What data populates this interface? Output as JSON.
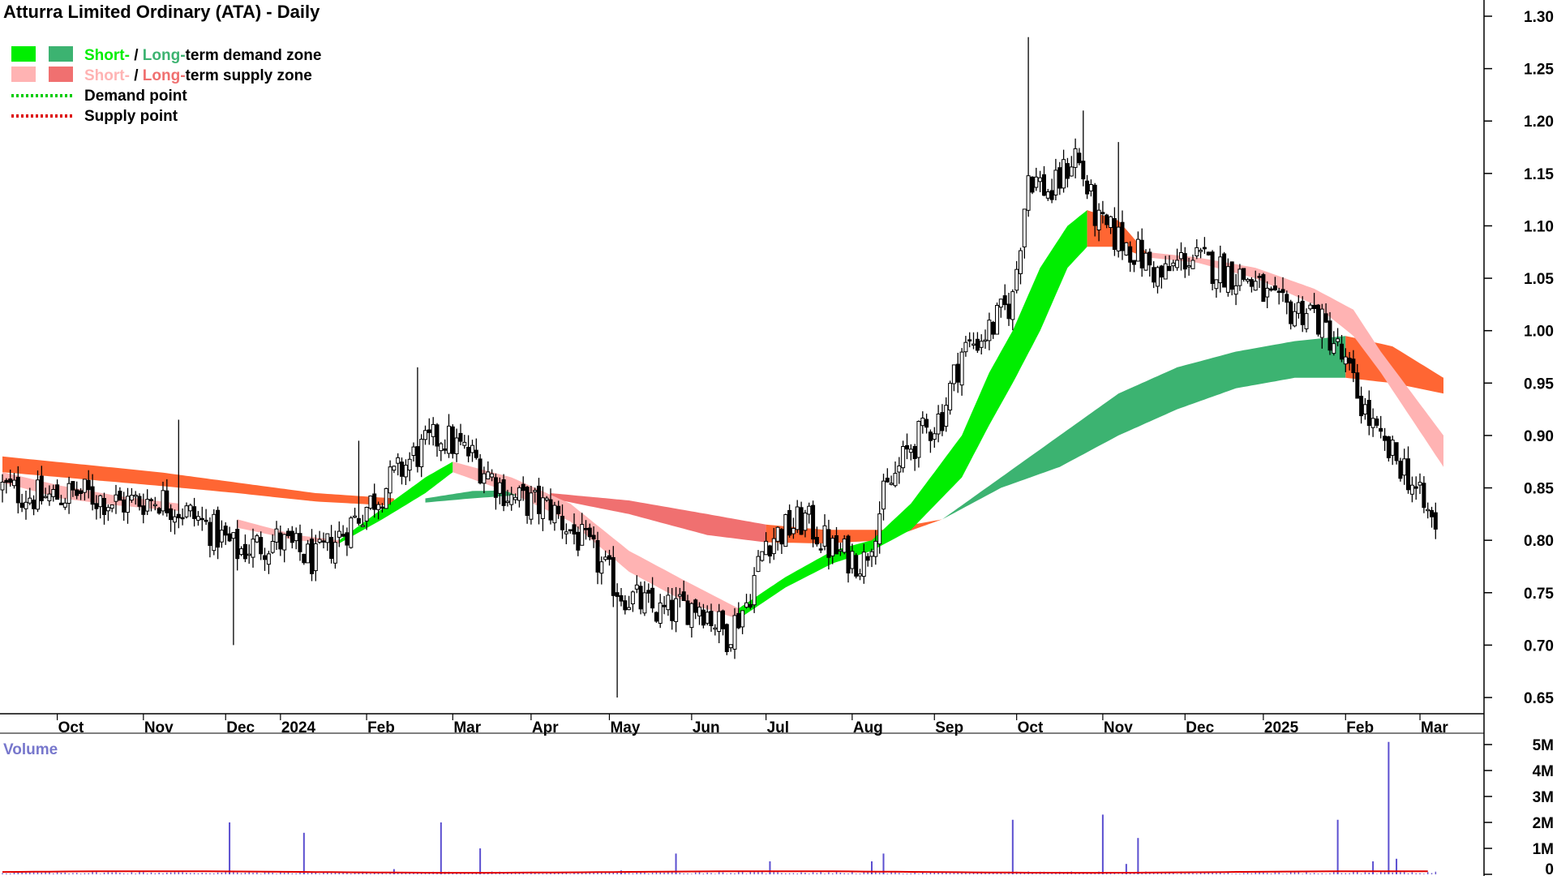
{
  "chart_data": {
    "type": "candlestick",
    "title": "Atturra Limited Ordinary (ATA) - Daily",
    "legend": {
      "placement": "top-left",
      "items": [
        {
          "short": "Short-",
          "sep": " / ",
          "long": "Long-",
          "rest": "term demand zone",
          "short_color": "#00ee00",
          "long_color": "#3cb371"
        },
        {
          "short": "Short-",
          "sep": " / ",
          "long": "Long-",
          "rest": "term supply zone",
          "short_color": "#ffb3b3",
          "long_color": "#f07070"
        },
        {
          "label": "Demand point",
          "color": "#00cc00"
        },
        {
          "label": "Supply point",
          "color": "#dd0000"
        }
      ]
    },
    "price_axis": {
      "min": 0.63,
      "max": 1.315,
      "position": "right",
      "ticks": [
        "0.65",
        "0.70",
        "0.75",
        "0.80",
        "0.85",
        "0.90",
        "0.95",
        "1.00",
        "1.05",
        "1.10",
        "1.15",
        "1.20",
        "1.25",
        "1.30"
      ]
    },
    "x_axis": {
      "labels": [
        "Oct",
        "Nov",
        "Dec",
        "2024",
        "Feb",
        "Mar",
        "Apr",
        "May",
        "Jun",
        "Jul",
        "Aug",
        "Sep",
        "Oct",
        "Nov",
        "Dec",
        "2025",
        "Feb",
        "Mar"
      ]
    },
    "price_anchors": [
      {
        "d": 0,
        "p": 0.85
      },
      {
        "d": 10,
        "p": 0.84
      },
      {
        "d": 20,
        "p": 0.845
      },
      {
        "d": 30,
        "p": 0.835
      },
      {
        "d": 40,
        "p": 0.84
      },
      {
        "d": 50,
        "p": 0.82
      },
      {
        "d": 60,
        "p": 0.79
      },
      {
        "d": 70,
        "p": 0.8
      },
      {
        "d": 80,
        "p": 0.78
      },
      {
        "d": 90,
        "p": 0.82
      },
      {
        "d": 95,
        "p": 0.84
      },
      {
        "d": 105,
        "p": 0.88
      },
      {
        "d": 112,
        "p": 0.9
      },
      {
        "d": 120,
        "p": 0.88
      },
      {
        "d": 130,
        "p": 0.84
      },
      {
        "d": 140,
        "p": 0.83
      },
      {
        "d": 150,
        "p": 0.79
      },
      {
        "d": 158,
        "p": 0.75
      },
      {
        "d": 168,
        "p": 0.73
      },
      {
        "d": 178,
        "p": 0.74
      },
      {
        "d": 185,
        "p": 0.71
      },
      {
        "d": 190,
        "p": 0.74
      },
      {
        "d": 195,
        "p": 0.8
      },
      {
        "d": 205,
        "p": 0.82
      },
      {
        "d": 212,
        "p": 0.79
      },
      {
        "d": 220,
        "p": 0.78
      },
      {
        "d": 225,
        "p": 0.84
      },
      {
        "d": 232,
        "p": 0.89
      },
      {
        "d": 240,
        "p": 0.92
      },
      {
        "d": 245,
        "p": 0.98
      },
      {
        "d": 252,
        "p": 1.0
      },
      {
        "d": 258,
        "p": 1.03
      },
      {
        "d": 262,
        "p": 1.15
      },
      {
        "d": 268,
        "p": 1.13
      },
      {
        "d": 274,
        "p": 1.17
      },
      {
        "d": 280,
        "p": 1.1
      },
      {
        "d": 288,
        "p": 1.08
      },
      {
        "d": 296,
        "p": 1.05
      },
      {
        "d": 302,
        "p": 1.07
      },
      {
        "d": 310,
        "p": 1.06
      },
      {
        "d": 318,
        "p": 1.05
      },
      {
        "d": 326,
        "p": 1.02
      },
      {
        "d": 334,
        "p": 1.02
      },
      {
        "d": 340,
        "p": 0.99
      },
      {
        "d": 346,
        "p": 0.94
      },
      {
        "d": 352,
        "p": 0.89
      },
      {
        "d": 358,
        "p": 0.87
      },
      {
        "d": 363,
        "p": 0.83
      },
      {
        "d": 367,
        "p": 0.81
      }
    ],
    "spikes": [
      {
        "d": 45,
        "high": 0.915
      },
      {
        "d": 59,
        "low": 0.7
      },
      {
        "d": 91,
        "high": 0.895
      },
      {
        "d": 106,
        "high": 0.965
      },
      {
        "d": 157,
        "low": 0.65
      },
      {
        "d": 262,
        "high": 1.28
      },
      {
        "d": 276,
        "high": 1.21
      },
      {
        "d": 285,
        "high": 1.18
      }
    ],
    "zones": {
      "long_supply_1": {
        "label": "Long-term supply zone",
        "color": "#ff6633",
        "upper": [
          {
            "d": 0,
            "p": 0.88
          },
          {
            "d": 40,
            "p": 0.865
          },
          {
            "d": 60,
            "p": 0.855
          },
          {
            "d": 80,
            "p": 0.845
          },
          {
            "d": 100,
            "p": 0.84
          }
        ],
        "lower": [
          {
            "d": 0,
            "p": 0.865
          },
          {
            "d": 40,
            "p": 0.852
          },
          {
            "d": 60,
            "p": 0.845
          },
          {
            "d": 80,
            "p": 0.837
          },
          {
            "d": 100,
            "p": 0.833
          }
        ]
      },
      "long_supply_2": {
        "label": "Long-term supply zone",
        "color": "#f07070",
        "upper": [
          {
            "d": 140,
            "p": 0.845
          },
          {
            "d": 160,
            "p": 0.838
          },
          {
            "d": 180,
            "p": 0.825
          },
          {
            "d": 195,
            "p": 0.815
          }
        ],
        "lower": [
          {
            "d": 140,
            "p": 0.84
          },
          {
            "d": 160,
            "p": 0.825
          },
          {
            "d": 180,
            "p": 0.805
          },
          {
            "d": 195,
            "p": 0.798
          }
        ]
      },
      "long_supply_3": {
        "label": "Long-term supply zone",
        "color": "#ff6633",
        "upper": [
          {
            "d": 195,
            "p": 0.815
          },
          {
            "d": 210,
            "p": 0.81
          },
          {
            "d": 225,
            "p": 0.81
          },
          {
            "d": 240,
            "p": 0.82
          }
        ],
        "lower": [
          {
            "d": 195,
            "p": 0.798
          },
          {
            "d": 210,
            "p": 0.797
          },
          {
            "d": 225,
            "p": 0.8
          },
          {
            "d": 240,
            "p": 0.82
          }
        ]
      },
      "long_demand_1": {
        "label": "Long-term demand zone",
        "color": "#3cb371",
        "upper": [
          {
            "d": 108,
            "p": 0.84
          },
          {
            "d": 120,
            "p": 0.847
          },
          {
            "d": 135,
            "p": 0.848
          }
        ],
        "lower": [
          {
            "d": 108,
            "p": 0.836
          },
          {
            "d": 120,
            "p": 0.84
          },
          {
            "d": 135,
            "p": 0.844
          }
        ]
      },
      "long_demand_2": {
        "label": "Long-term demand zone",
        "color": "#3cb371",
        "upper": [
          {
            "d": 240,
            "p": 0.82
          },
          {
            "d": 255,
            "p": 0.86
          },
          {
            "d": 270,
            "p": 0.9
          },
          {
            "d": 285,
            "p": 0.94
          },
          {
            "d": 300,
            "p": 0.965
          },
          {
            "d": 315,
            "p": 0.98
          },
          {
            "d": 330,
            "p": 0.99
          },
          {
            "d": 343,
            "p": 0.995
          }
        ],
        "lower": [
          {
            "d": 240,
            "p": 0.82
          },
          {
            "d": 255,
            "p": 0.85
          },
          {
            "d": 270,
            "p": 0.87
          },
          {
            "d": 285,
            "p": 0.9
          },
          {
            "d": 300,
            "p": 0.925
          },
          {
            "d": 315,
            "p": 0.945
          },
          {
            "d": 330,
            "p": 0.955
          },
          {
            "d": 343,
            "p": 0.955
          }
        ]
      },
      "long_supply_4": {
        "label": "Long-term supply zone",
        "color": "#ff6633",
        "upper": [
          {
            "d": 343,
            "p": 0.995
          },
          {
            "d": 355,
            "p": 0.985
          },
          {
            "d": 368,
            "p": 0.955
          }
        ],
        "lower": [
          {
            "d": 343,
            "p": 0.955
          },
          {
            "d": 355,
            "p": 0.95
          },
          {
            "d": 368,
            "p": 0.94
          }
        ]
      },
      "short_supply_1": {
        "label": "Short-term supply zone",
        "color": "#ffb3b3",
        "upper": [
          {
            "d": 0,
            "p": 0.865
          },
          {
            "d": 15,
            "p": 0.852
          },
          {
            "d": 30,
            "p": 0.842
          },
          {
            "d": 45,
            "p": 0.835
          }
        ],
        "lower": [
          {
            "d": 0,
            "p": 0.855
          },
          {
            "d": 15,
            "p": 0.84
          },
          {
            "d": 30,
            "p": 0.833
          },
          {
            "d": 45,
            "p": 0.828
          }
        ]
      },
      "short_supply_2": {
        "label": "Short-term supply zone",
        "color": "#ffb3b3",
        "upper": [
          {
            "d": 60,
            "p": 0.82
          },
          {
            "d": 75,
            "p": 0.805
          },
          {
            "d": 86,
            "p": 0.8
          }
        ],
        "lower": [
          {
            "d": 60,
            "p": 0.812
          },
          {
            "d": 75,
            "p": 0.8
          },
          {
            "d": 86,
            "p": 0.797
          }
        ]
      },
      "short_demand_1": {
        "label": "Short-term demand zone",
        "color": "#00ee00",
        "upper": [
          {
            "d": 86,
            "p": 0.8
          },
          {
            "d": 97,
            "p": 0.83
          },
          {
            "d": 108,
            "p": 0.86
          },
          {
            "d": 115,
            "p": 0.875
          }
        ],
        "lower": [
          {
            "d": 86,
            "p": 0.797
          },
          {
            "d": 97,
            "p": 0.82
          },
          {
            "d": 108,
            "p": 0.845
          },
          {
            "d": 115,
            "p": 0.865
          }
        ]
      },
      "short_supply_3": {
        "label": "Short-term supply zone",
        "color": "#ffb3b3",
        "upper": [
          {
            "d": 115,
            "p": 0.875
          },
          {
            "d": 130,
            "p": 0.86
          },
          {
            "d": 145,
            "p": 0.835
          },
          {
            "d": 160,
            "p": 0.79
          },
          {
            "d": 175,
            "p": 0.76
          },
          {
            "d": 188,
            "p": 0.735
          }
        ],
        "lower": [
          {
            "d": 115,
            "p": 0.865
          },
          {
            "d": 130,
            "p": 0.845
          },
          {
            "d": 145,
            "p": 0.818
          },
          {
            "d": 160,
            "p": 0.77
          },
          {
            "d": 175,
            "p": 0.74
          },
          {
            "d": 188,
            "p": 0.725
          }
        ]
      },
      "short_demand_2": {
        "label": "Short-term demand zone",
        "color": "#00ee00",
        "upper": [
          {
            "d": 188,
            "p": 0.735
          },
          {
            "d": 200,
            "p": 0.765
          },
          {
            "d": 212,
            "p": 0.79
          },
          {
            "d": 222,
            "p": 0.8
          },
          {
            "d": 232,
            "p": 0.835
          },
          {
            "d": 245,
            "p": 0.9
          },
          {
            "d": 252,
            "p": 0.96
          },
          {
            "d": 258,
            "p": 1.0
          },
          {
            "d": 265,
            "p": 1.06
          },
          {
            "d": 272,
            "p": 1.1
          },
          {
            "d": 277,
            "p": 1.115
          }
        ],
        "lower": [
          {
            "d": 188,
            "p": 0.725
          },
          {
            "d": 200,
            "p": 0.755
          },
          {
            "d": 212,
            "p": 0.778
          },
          {
            "d": 222,
            "p": 0.79
          },
          {
            "d": 232,
            "p": 0.81
          },
          {
            "d": 245,
            "p": 0.86
          },
          {
            "d": 252,
            "p": 0.91
          },
          {
            "d": 258,
            "p": 0.95
          },
          {
            "d": 265,
            "p": 1.0
          },
          {
            "d": 272,
            "p": 1.06
          },
          {
            "d": 277,
            "p": 1.08
          }
        ]
      },
      "short_supply_4": {
        "label": "Short-term supply zone",
        "color": "#ff6633",
        "upper": [
          {
            "d": 277,
            "p": 1.115
          },
          {
            "d": 285,
            "p": 1.105
          },
          {
            "d": 292,
            "p": 1.075
          }
        ],
        "lower": [
          {
            "d": 277,
            "p": 1.08
          },
          {
            "d": 285,
            "p": 1.08
          },
          {
            "d": 292,
            "p": 1.07
          }
        ]
      },
      "short_supply_5": {
        "label": "Short-term supply zone",
        "color": "#ffb3b3",
        "upper": [
          {
            "d": 292,
            "p": 1.075
          },
          {
            "d": 305,
            "p": 1.07
          },
          {
            "d": 320,
            "p": 1.06
          },
          {
            "d": 335,
            "p": 1.04
          },
          {
            "d": 345,
            "p": 1.02
          },
          {
            "d": 352,
            "p": 0.98
          },
          {
            "d": 360,
            "p": 0.94
          },
          {
            "d": 368,
            "p": 0.9
          }
        ],
        "lower": [
          {
            "d": 292,
            "p": 1.07
          },
          {
            "d": 305,
            "p": 1.065
          },
          {
            "d": 320,
            "p": 1.05
          },
          {
            "d": 335,
            "p": 1.025
          },
          {
            "d": 345,
            "p": 0.995
          },
          {
            "d": 352,
            "p": 0.96
          },
          {
            "d": 360,
            "p": 0.915
          },
          {
            "d": 368,
            "p": 0.87
          }
        ]
      }
    },
    "volume": {
      "label": "Volume",
      "axis_ticks": [
        "5M",
        "4M",
        "3M",
        "2M",
        "1M",
        "0"
      ],
      "max": 5200000,
      "spikes": [
        {
          "d": 58,
          "v": 2000000
        },
        {
          "d": 77,
          "v": 1600000
        },
        {
          "d": 100,
          "v": 200000
        },
        {
          "d": 112,
          "v": 2000000
        },
        {
          "d": 122,
          "v": 1000000
        },
        {
          "d": 158,
          "v": 150000
        },
        {
          "d": 172,
          "v": 800000
        },
        {
          "d": 196,
          "v": 500000
        },
        {
          "d": 222,
          "v": 500000
        },
        {
          "d": 225,
          "v": 800000
        },
        {
          "d": 258,
          "v": 2100000
        },
        {
          "d": 281,
          "v": 2300000
        },
        {
          "d": 290,
          "v": 1400000
        },
        {
          "d": 287,
          "v": 400000
        },
        {
          "d": 341,
          "v": 2100000
        },
        {
          "d": 354,
          "v": 5100000
        },
        {
          "d": 350,
          "v": 500000
        },
        {
          "d": 356,
          "v": 600000
        }
      ]
    },
    "grid": false,
    "up_color": "#ffffff",
    "down_color": "#000000"
  }
}
